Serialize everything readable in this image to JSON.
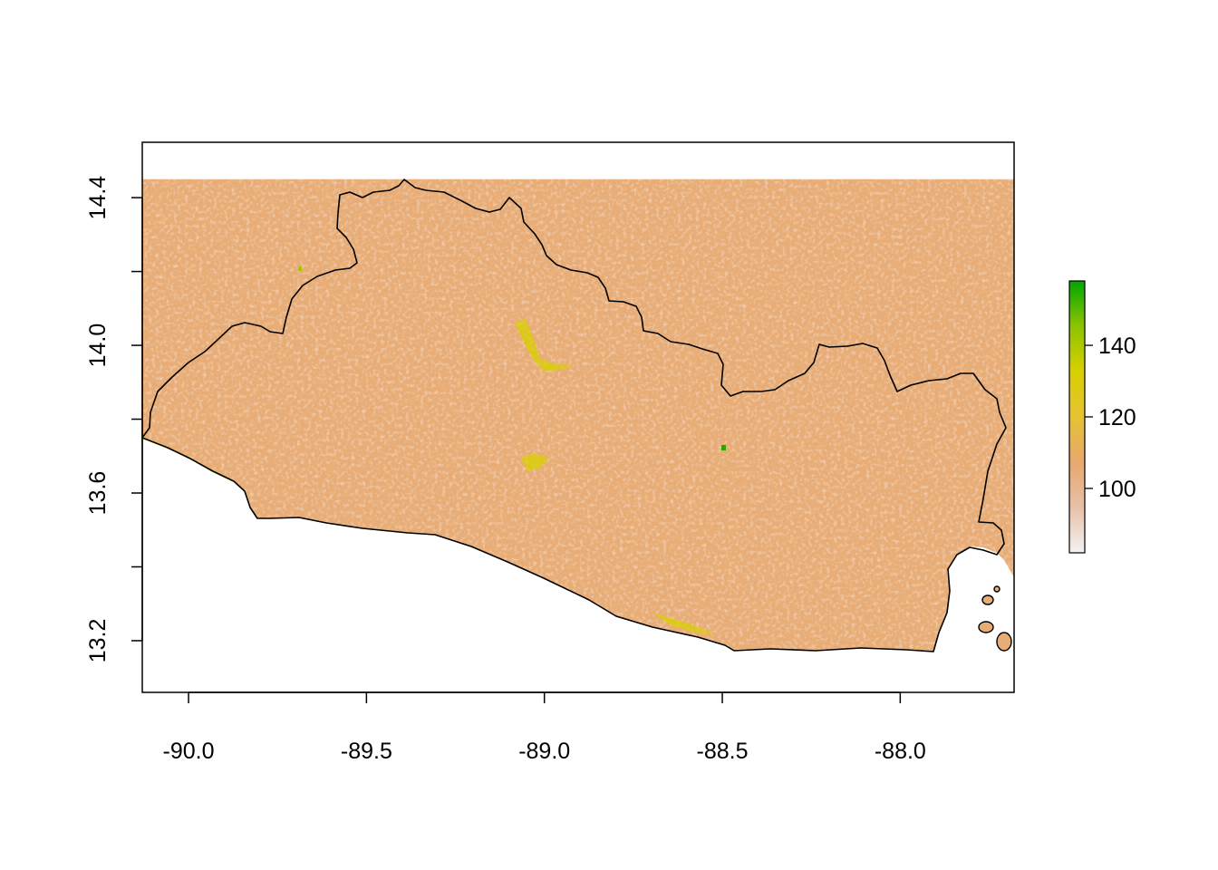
{
  "map": {
    "type": "raster",
    "x_axis": {
      "range": [
        -90.13,
        -87.68
      ],
      "ticks": [
        -90.0,
        -89.5,
        -89.0,
        -88.5,
        -88.0
      ],
      "tick_labels": [
        "-90.0",
        "-89.5",
        "-89.0",
        "-88.5",
        "-88.0"
      ]
    },
    "y_axis": {
      "range": [
        13.06,
        14.55
      ],
      "ticks": [
        13.2,
        13.4,
        13.6,
        13.8,
        14.0,
        14.2,
        14.4
      ],
      "labeled_ticks": [
        13.2,
        13.6,
        14.0,
        14.4
      ],
      "tick_labels": [
        "13.2",
        "13.6",
        "14.0",
        "14.4"
      ]
    },
    "raster_extent": {
      "lon": [
        -90.13,
        -87.68
      ],
      "lat_max": 14.45
    },
    "legend": {
      "range": [
        82,
        158
      ],
      "ticks": [
        100,
        120,
        140
      ],
      "tick_labels": [
        "100",
        "120",
        "140"
      ],
      "colors": [
        "#f2f2f2",
        "#e8c0a8",
        "#e8a86e",
        "#e6c232",
        "#d8d000",
        "#8cc400",
        "#00a600"
      ],
      "placement": "right"
    },
    "colors": {
      "base": "#e8ad76",
      "speckle": "#f0cfc6",
      "outline": "#000000",
      "highlight": "#d8d000",
      "peak": "#2fa600"
    }
  }
}
